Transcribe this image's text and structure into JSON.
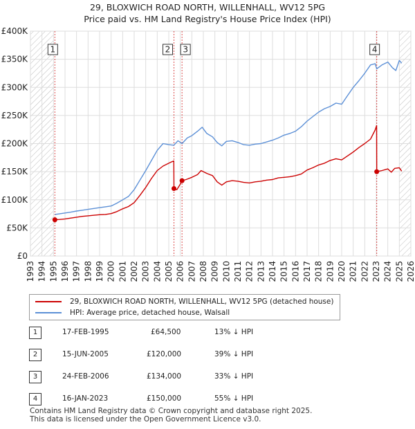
{
  "title_line1": "29, BLOXWICH ROAD NORTH, WILLENHALL, WV12 5PG",
  "title_line2": "Price paid vs. HM Land Registry's House Price Index (HPI)",
  "chart_data": {
    "type": "line",
    "y_ticks": [
      {
        "value": 0,
        "label": "£0"
      },
      {
        "value": 50000,
        "label": "£50K"
      },
      {
        "value": 100000,
        "label": "£100K"
      },
      {
        "value": 150000,
        "label": "£150K"
      },
      {
        "value": 200000,
        "label": "£200K"
      },
      {
        "value": 250000,
        "label": "£250K"
      },
      {
        "value": 300000,
        "label": "£300K"
      },
      {
        "value": 350000,
        "label": "£350K"
      },
      {
        "value": 400000,
        "label": "£400K"
      }
    ],
    "ylim": [
      0,
      400000
    ],
    "xlim": [
      1993,
      2026
    ],
    "x_ticks": [
      "1993",
      "1994",
      "1995",
      "1996",
      "1997",
      "1998",
      "1999",
      "2000",
      "2001",
      "2002",
      "2003",
      "2004",
      "2005",
      "2006",
      "2007",
      "2008",
      "2009",
      "2010",
      "2011",
      "2012",
      "2013",
      "2014",
      "2015",
      "2016",
      "2017",
      "2018",
      "2019",
      "2020",
      "2021",
      "2022",
      "2023",
      "2024",
      "2025",
      "2026"
    ],
    "hatched_before": 1995.0,
    "hatched_after": 2025.0,
    "series": [
      {
        "name": "29, BLOXWICH ROAD NORTH, WILLENHALL, WV12 5PG (detached house)",
        "color": "#cc0000",
        "x": [
          1995.12,
          1995.5,
          1996.0,
          1996.5,
          1997.0,
          1997.5,
          1998.0,
          1998.5,
          1999.0,
          1999.5,
          2000.0,
          2000.5,
          2001.0,
          2001.5,
          2002.0,
          2002.5,
          2003.0,
          2003.5,
          2004.0,
          2004.5,
          2005.0,
          2005.3,
          2005.44,
          2005.45,
          2005.7,
          2006.0,
          2006.15,
          2006.5,
          2007.0,
          2007.5,
          2007.8,
          2008.3,
          2008.8,
          2009.2,
          2009.6,
          2010.0,
          2010.5,
          2011.0,
          2011.5,
          2012.0,
          2012.5,
          2013.0,
          2013.5,
          2014.0,
          2014.5,
          2015.0,
          2015.5,
          2016.0,
          2016.5,
          2017.0,
          2017.5,
          2018.0,
          2018.5,
          2019.0,
          2019.5,
          2020.0,
          2020.5,
          2021.0,
          2021.5,
          2022.0,
          2022.5,
          2022.9,
          2023.03,
          2023.04,
          2023.5,
          2024.0,
          2024.3,
          2024.6,
          2025.0,
          2025.2
        ],
        "values": [
          64500,
          65000,
          66000,
          67500,
          69000,
          70500,
          71500,
          72500,
          73500,
          74000,
          75500,
          79000,
          84000,
          88000,
          95000,
          108000,
          122000,
          138000,
          152000,
          160000,
          165000,
          168000,
          169000,
          120000,
          118000,
          128000,
          134000,
          136000,
          140000,
          145000,
          152000,
          147000,
          143000,
          132000,
          126000,
          132000,
          134000,
          133000,
          131000,
          130000,
          132000,
          133000,
          135000,
          136000,
          139000,
          140000,
          141000,
          143000,
          146000,
          153000,
          157000,
          162000,
          165000,
          170000,
          173000,
          171000,
          178000,
          185000,
          193000,
          200000,
          208000,
          224000,
          232000,
          150000,
          152000,
          155000,
          149000,
          156000,
          157000,
          151000
        ]
      },
      {
        "name": "HPI: Average price, detached house, Walsall",
        "color": "#5b8fd6",
        "x": [
          1995.12,
          1995.5,
          1996.0,
          1996.5,
          1997.0,
          1997.5,
          1998.0,
          1998.5,
          1999.0,
          1999.5,
          2000.0,
          2000.5,
          2001.0,
          2001.5,
          2002.0,
          2002.5,
          2003.0,
          2003.5,
          2004.0,
          2004.5,
          2005.0,
          2005.44,
          2005.8,
          2006.15,
          2006.6,
          2007.0,
          2007.5,
          2007.9,
          2008.3,
          2008.8,
          2009.2,
          2009.6,
          2010.0,
          2010.5,
          2011.0,
          2011.5,
          2012.0,
          2012.5,
          2013.0,
          2013.5,
          2014.0,
          2014.5,
          2015.0,
          2015.5,
          2016.0,
          2016.5,
          2017.0,
          2017.5,
          2018.0,
          2018.5,
          2019.0,
          2019.5,
          2020.0,
          2020.5,
          2021.0,
          2021.5,
          2022.0,
          2022.5,
          2022.9,
          2023.04,
          2023.5,
          2024.0,
          2024.4,
          2024.7,
          2025.0,
          2025.2
        ],
        "values": [
          74000,
          75000,
          76500,
          78000,
          80000,
          81500,
          83000,
          84500,
          86000,
          87500,
          89000,
          94000,
          100000,
          106000,
          118000,
          135000,
          152000,
          170000,
          188000,
          200000,
          198000,
          197000,
          205000,
          200000,
          210000,
          214000,
          222000,
          229000,
          218000,
          212000,
          202000,
          196000,
          204000,
          205000,
          202000,
          198000,
          197000,
          199000,
          200000,
          203000,
          206000,
          210000,
          215000,
          218000,
          222000,
          230000,
          240000,
          248000,
          256000,
          262000,
          266000,
          272000,
          270000,
          285000,
          300000,
          312000,
          325000,
          340000,
          342000,
          333000,
          340000,
          345000,
          335000,
          330000,
          348000,
          343000
        ]
      }
    ],
    "sales": [
      {
        "num": "1",
        "x": 1995.12,
        "value": 64500
      },
      {
        "num": "2",
        "x": 2005.45,
        "value": 120000
      },
      {
        "num": "3",
        "x": 2006.15,
        "value": 134000
      },
      {
        "num": "4",
        "x": 2023.04,
        "value": 150000
      }
    ]
  },
  "legend": {
    "property_label": "29, BLOXWICH ROAD NORTH, WILLENHALL, WV12 5PG (detached house)",
    "hpi_label": "HPI: Average price, detached house, Walsall"
  },
  "sales_table": [
    {
      "num": "1",
      "date": "17-FEB-1995",
      "price": "£64,500",
      "hpi": "13% ↓ HPI"
    },
    {
      "num": "2",
      "date": "15-JUN-2005",
      "price": "£120,000",
      "hpi": "39% ↓ HPI"
    },
    {
      "num": "3",
      "date": "24-FEB-2006",
      "price": "£134,000",
      "hpi": "33% ↓ HPI"
    },
    {
      "num": "4",
      "date": "16-JAN-2023",
      "price": "£150,000",
      "hpi": "55% ↓ HPI"
    }
  ],
  "footer_line1": "Contains HM Land Registry data © Crown copyright and database right 2025.",
  "footer_line2": "This data is licensed under the Open Government Licence v3.0."
}
